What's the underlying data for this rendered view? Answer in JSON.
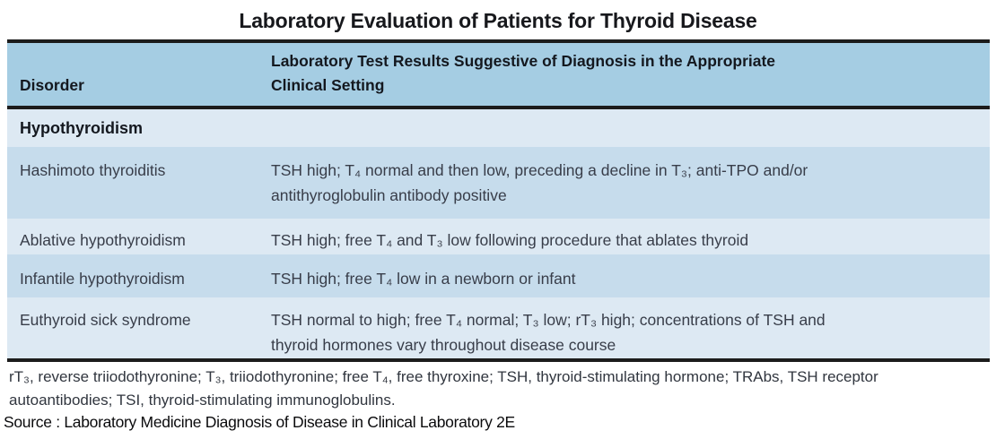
{
  "title": "Laboratory Evaluation of Patients for Thyroid Disease",
  "table": {
    "header": {
      "col1": "Disorder",
      "col2": "Laboratory Test Results Suggestive of Diagnosis in the Appropriate\nClinical Setting"
    },
    "section_label": "Hypothyroidism",
    "rows": [
      {
        "disorder": "Hashimoto thyroiditis",
        "result": "TSH high; T₄ normal and then low, preceding a decline in T₃; anti-TPO and/or\nantithyroglobulin antibody positive"
      },
      {
        "disorder": "Ablative hypothyroidism",
        "result": "TSH high; free T₄ and T₃ low following procedure that ablates thyroid"
      },
      {
        "disorder": "Infantile hypothyroidism",
        "result": "TSH high; free T₄ low in a newborn or infant"
      },
      {
        "disorder": "Euthyroid sick syndrome",
        "result": "TSH normal to high; free T₄ normal; T₃ low; rT₃ high; concentrations of TSH and\nthyroid hormones vary throughout disease course"
      }
    ]
  },
  "footnote": "rT₃, reverse triiodothyronine; T₃, triiodothyronine; free T₄, free thyroxine; TSH, thyroid-stimulating hormone; TRAbs, TSH receptor\nautoantibodies; TSI, thyroid-stimulating immunoglobulins.",
  "source": "Source : Laboratory Medicine Diagnosis of Disease in Clinical Laboratory 2E",
  "colors": {
    "header_bg": "#a5cde3",
    "row_light": "#dde9f3",
    "row_dark": "#c6dcec",
    "border": "#1c1c1c"
  }
}
